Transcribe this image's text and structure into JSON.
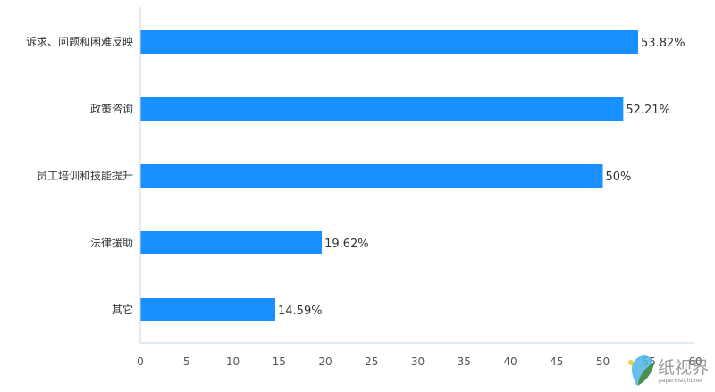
{
  "chart_data": {
    "type": "bar",
    "orientation": "horizontal",
    "categories": [
      "诉求、问题和困难反映",
      "政策咨询",
      "员工培训和技能提升",
      "法律援助",
      "其它"
    ],
    "values": [
      53.82,
      52.21,
      50,
      19.62,
      14.59
    ],
    "data_labels": [
      "53.82%",
      "52.21%",
      "50%",
      "19.62%",
      "14.59%"
    ],
    "xlim": [
      0,
      60
    ],
    "x_ticks": [
      0,
      5,
      10,
      15,
      20,
      25,
      30,
      35,
      40,
      45,
      50,
      55,
      60
    ],
    "grid": false,
    "legend": "none",
    "bar_color": "#1890ff",
    "axis_color": "#c9d4ea"
  },
  "watermark": {
    "text": "纸视界",
    "url": "paperinsight.net",
    "colors": [
      "#f0c419",
      "#4db6e8",
      "#2e7d32"
    ]
  }
}
